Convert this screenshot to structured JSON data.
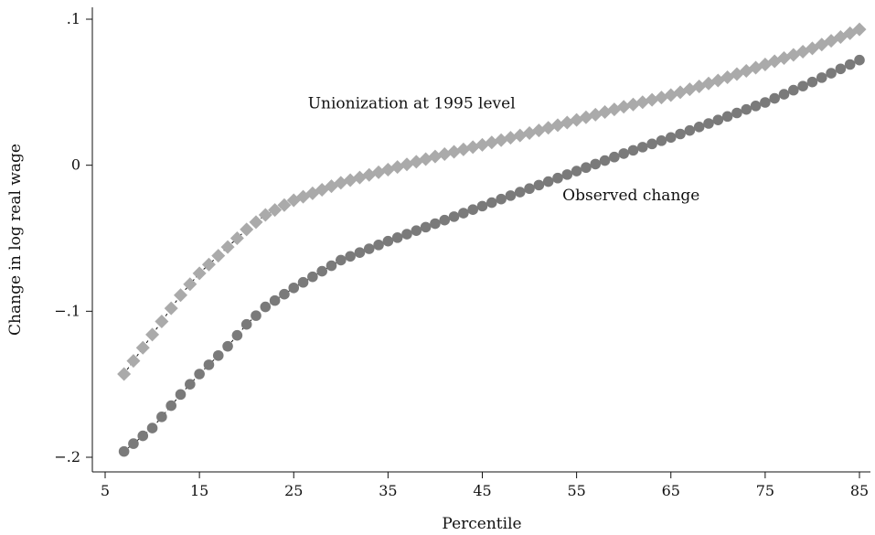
{
  "chart_data": {
    "type": "scatter",
    "title": "",
    "xlabel": "Percentile",
    "ylabel": "Change in log real wage",
    "xlim": [
      5,
      86
    ],
    "ylim": [
      -0.21,
      0.104
    ],
    "xticks": [
      5,
      15,
      25,
      35,
      45,
      55,
      65,
      75,
      85
    ],
    "xtick_labels": [
      "5",
      "15",
      "25",
      "35",
      "45",
      "55",
      "65",
      "75",
      "85"
    ],
    "yticks": [
      -0.2,
      -0.1,
      0,
      0.1
    ],
    "ytick_labels": [
      "−.2",
      "−.1",
      "0",
      ".1"
    ],
    "grid": false,
    "legend": "none",
    "annotations": [
      {
        "text": "Unionization at 1995 level",
        "x": 26.5,
        "y": 0.039
      },
      {
        "text": "Observed change",
        "x": 53.5,
        "y": -0.024
      }
    ],
    "series": [
      {
        "marker": "diamond",
        "color": "#aaaaaa",
        "anchors": [
          [
            7,
            -0.143
          ],
          [
            10,
            -0.116
          ],
          [
            13,
            -0.089
          ],
          [
            15,
            -0.074
          ],
          [
            18,
            -0.056
          ],
          [
            20,
            -0.044
          ],
          [
            22,
            -0.034
          ],
          [
            25,
            -0.024
          ],
          [
            30,
            -0.012
          ],
          [
            35,
            -0.003
          ],
          [
            40,
            0.006
          ],
          [
            45,
            0.014
          ],
          [
            50,
            0.022
          ],
          [
            55,
            0.031
          ],
          [
            60,
            0.04
          ],
          [
            65,
            0.048
          ],
          [
            70,
            0.058
          ],
          [
            75,
            0.069
          ],
          [
            80,
            0.08
          ],
          [
            85,
            0.093
          ]
        ]
      },
      {
        "marker": "circle",
        "color": "#7a7a7a",
        "anchors": [
          [
            7,
            -0.196
          ],
          [
            10,
            -0.18
          ],
          [
            13,
            -0.157
          ],
          [
            15,
            -0.143
          ],
          [
            18,
            -0.124
          ],
          [
            20,
            -0.109
          ],
          [
            22,
            -0.097
          ],
          [
            25,
            -0.084
          ],
          [
            30,
            -0.065
          ],
          [
            35,
            -0.052
          ],
          [
            40,
            -0.04
          ],
          [
            45,
            -0.028
          ],
          [
            50,
            -0.016
          ],
          [
            55,
            -0.004
          ],
          [
            60,
            0.008
          ],
          [
            65,
            0.019
          ],
          [
            70,
            0.031
          ],
          [
            75,
            0.043
          ],
          [
            80,
            0.057
          ],
          [
            85,
            0.072
          ]
        ]
      }
    ]
  }
}
